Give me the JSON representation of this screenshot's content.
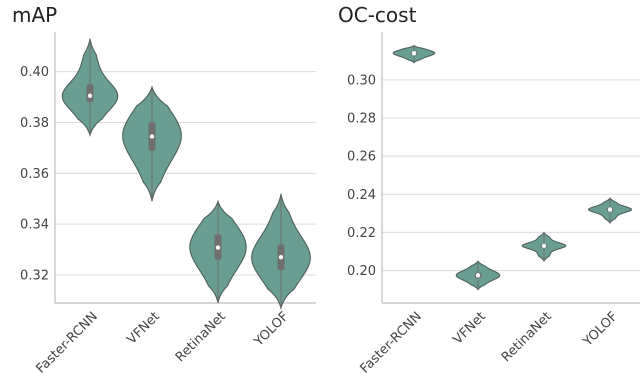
{
  "chart_data": [
    {
      "type": "violin",
      "title": "mAP",
      "xlabel": "",
      "ylabel": "",
      "categories": [
        "Faster-RCNN",
        "VFNet",
        "RetinaNet",
        "YOLOF"
      ],
      "ylim": [
        0.309,
        0.414
      ],
      "yticks": [
        "0.32",
        "0.34",
        "0.36",
        "0.38",
        "0.40"
      ],
      "grid": true,
      "color": "#6a9e92",
      "series": [
        {
          "min": 0.375,
          "q1": 0.388,
          "median": 0.3905,
          "q3": 0.395,
          "max": 0.413
        },
        {
          "min": 0.349,
          "q1": 0.369,
          "median": 0.3745,
          "q3": 0.38,
          "max": 0.394
        },
        {
          "min": 0.309,
          "q1": 0.326,
          "median": 0.3308,
          "q3": 0.336,
          "max": 0.349
        },
        {
          "min": 0.307,
          "q1": 0.322,
          "median": 0.327,
          "q3": 0.332,
          "max": 0.352
        }
      ]
    },
    {
      "type": "violin",
      "title": "OC-cost",
      "xlabel": "",
      "ylabel": "",
      "categories": [
        "Faster-RCNN",
        "VFNet",
        "RetinaNet",
        "YOLOF"
      ],
      "ylim": [
        0.183,
        0.323
      ],
      "yticks": [
        "0.20",
        "0.22",
        "0.24",
        "0.26",
        "0.28",
        "0.30"
      ],
      "grid": true,
      "color": "#6a9e92",
      "series": [
        {
          "min": 0.309,
          "q1": 0.313,
          "median": 0.314,
          "q3": 0.315,
          "max": 0.318
        },
        {
          "min": 0.19,
          "q1": 0.196,
          "median": 0.1975,
          "q3": 0.199,
          "max": 0.205
        },
        {
          "min": 0.205,
          "q1": 0.212,
          "median": 0.213,
          "q3": 0.214,
          "max": 0.22
        },
        {
          "min": 0.225,
          "q1": 0.231,
          "median": 0.232,
          "q3": 0.233,
          "max": 0.238
        }
      ]
    }
  ]
}
